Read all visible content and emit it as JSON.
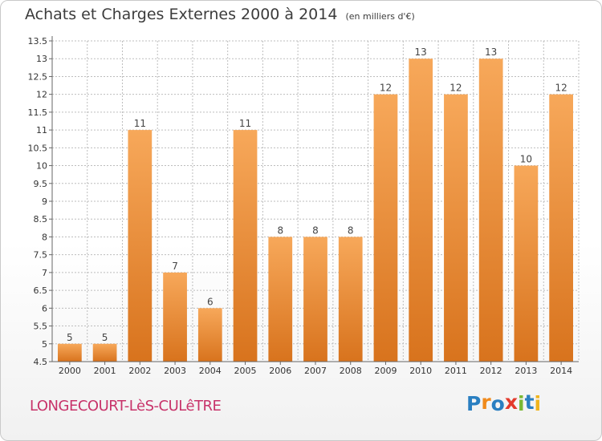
{
  "header": {
    "title": "Achats et Charges Externes 2000 à 2014",
    "subtitle": "(en milliers d'€)"
  },
  "footer": {
    "commune": "LONGECOURT-LèS-CULêTRE",
    "logo_letters": [
      "P",
      "r",
      "o",
      "x",
      "i",
      "t",
      "i"
    ],
    "logo_colors": [
      "#2a7fc1",
      "#f08a1c",
      "#2a7fc1",
      "#e33a2c",
      "#79b833",
      "#2a7fc1",
      "#f0b41c"
    ]
  },
  "colors": {
    "bar_light": "#f7a85a",
    "bar_dark": "#d8731d",
    "grid": "#bdbdbd",
    "axis_text": "#333333"
  },
  "chart_data": {
    "type": "bar",
    "categories": [
      "2000",
      "2001",
      "2002",
      "2003",
      "2004",
      "2005",
      "2006",
      "2007",
      "2008",
      "2009",
      "2010",
      "2011",
      "2012",
      "2013",
      "2014"
    ],
    "values": [
      5,
      5,
      11,
      7,
      6,
      11,
      8,
      8,
      8,
      12,
      13,
      12,
      13,
      10,
      12
    ],
    "data_labels": [
      "5",
      "5",
      "11",
      "7",
      "6",
      "11",
      "8",
      "8",
      "8",
      "12",
      "13",
      "12",
      "13",
      "10",
      "12"
    ],
    "y_ticks": [
      "4.5",
      "5",
      "5.5",
      "6",
      "6.5",
      "7",
      "7.5",
      "8",
      "8.5",
      "9",
      "9.5",
      "10",
      "10.5",
      "11",
      "11.5",
      "12",
      "12.5",
      "13",
      "13.5"
    ],
    "ylim": [
      4.5,
      13.5
    ],
    "grid": true,
    "legend": "none"
  }
}
